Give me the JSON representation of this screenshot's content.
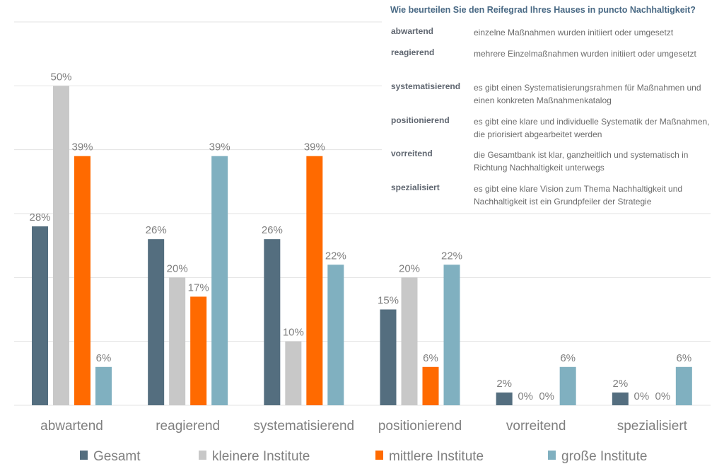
{
  "chart_data": {
    "type": "bar",
    "categories": [
      "abwartend",
      "reagierend",
      "systematisierend",
      "positionierend",
      "vorreitend",
      "spezialisiert"
    ],
    "series": [
      {
        "name": "Gesamt",
        "color": "#546e7f",
        "values": [
          28,
          26,
          26,
          15,
          2,
          2
        ],
        "labels": [
          "28%",
          "26%",
          "26%",
          "15%",
          "2%",
          "2%"
        ]
      },
      {
        "name": "kleinere Institute",
        "color": "#c8c8c8",
        "values": [
          50,
          20,
          10,
          20,
          0,
          0
        ],
        "labels": [
          "50%",
          "20%",
          "10%",
          "20%",
          "0%",
          "0%"
        ]
      },
      {
        "name": "mittlere Institute",
        "color": "#ff6a00",
        "values": [
          39,
          17,
          39,
          6,
          0,
          0
        ],
        "labels": [
          "39%",
          "17%",
          "39%",
          "6%",
          "0%",
          "0%"
        ]
      },
      {
        "name": "große Institute",
        "color": "#80b0c0",
        "values": [
          6,
          39,
          22,
          22,
          6,
          6
        ],
        "labels": [
          "6%",
          "39%",
          "22%",
          "22%",
          "6%",
          "6%"
        ]
      }
    ],
    "ylim": [
      0,
      60
    ],
    "grid": true,
    "legend_position": "bottom"
  },
  "info_box": {
    "title": "Wie beurteilen Sie den Reifegrad Ihres Hauses in puncto Nachhaltigkeit?",
    "rows": [
      {
        "term": "abwartend",
        "desc": "einzelne Maßnahmen wurden initiiert oder umgesetzt"
      },
      {
        "term": "reagierend",
        "desc": "mehrere Einzelmaßnahmen wurden initiiert oder umgesetzt"
      },
      {
        "term": "systematisierend",
        "desc": "es gibt einen Systematisierungsrahmen für Maßnahmen und einen konkreten Maßnahmenkatalog"
      },
      {
        "term": "positionierend",
        "desc": "es gibt eine klare und individuelle Systematik der Maßnahmen, die priorisiert abgearbeitet werden"
      },
      {
        "term": "vorreitend",
        "desc": "die Gesamtbank ist klar, ganzheitlich und systematisch in Richtung Nachhaltigkeit unterwegs"
      },
      {
        "term": "spezialisiert",
        "desc": "es gibt eine klare Vision zum Thema Nachhaltigkeit und Nachhaltigkeit ist ein Grundpfeiler der Strategie"
      }
    ]
  }
}
